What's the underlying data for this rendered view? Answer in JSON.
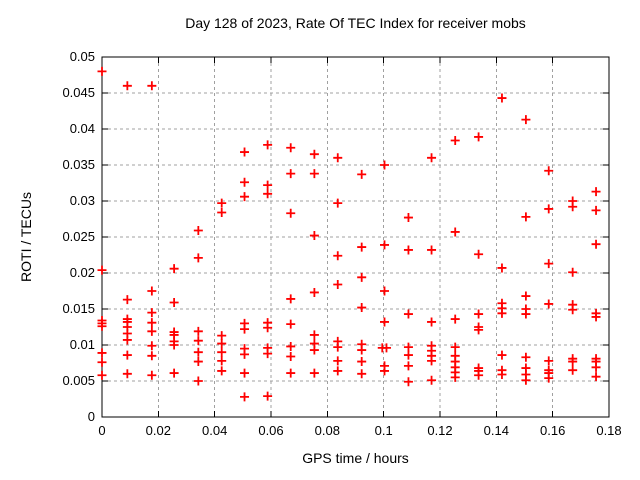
{
  "page": {
    "title": "Day 128 of 2023, Rate Of TEC Index for receiver mobs"
  },
  "chart_data": {
    "type": "scatter",
    "title": "Day 128 of 2023, Rate Of TEC Index for receiver mobs",
    "xlabel": "GPS time / hours",
    "ylabel": "ROTI / TECUs",
    "xlim": [
      0,
      0.18
    ],
    "ylim": [
      0,
      0.05
    ],
    "xticks": [
      0,
      0.02,
      0.04,
      0.06,
      0.08,
      0.1,
      0.12,
      0.14,
      0.16,
      0.18
    ],
    "yticks": [
      0,
      0.005,
      0.01,
      0.015,
      0.02,
      0.025,
      0.03,
      0.035,
      0.04,
      0.045,
      0.05
    ],
    "grid": true,
    "legend": false,
    "marker": {
      "shape": "plus",
      "color": "#ff0000",
      "size": 9,
      "stroke_width": 1.8
    },
    "colors": {
      "axis": "#000000",
      "grid": "#a0a0a0",
      "background": "#ffffff",
      "text": "#000000"
    },
    "points": [
      [
        0,
        0.048
      ],
      [
        0,
        0.0204
      ],
      [
        0,
        0.0134
      ],
      [
        0,
        0.013
      ],
      [
        0,
        0.0126
      ],
      [
        0,
        0.0089
      ],
      [
        0,
        0.0076
      ],
      [
        0,
        0.0058
      ],
      [
        0.009,
        0.046
      ],
      [
        0.009,
        0.0163
      ],
      [
        0.009,
        0.0136
      ],
      [
        0.009,
        0.0132
      ],
      [
        0.009,
        0.0125
      ],
      [
        0.009,
        0.0116
      ],
      [
        0.009,
        0.0107
      ],
      [
        0.009,
        0.0086
      ],
      [
        0.009,
        0.006
      ],
      [
        0.0177,
        0.046
      ],
      [
        0.0177,
        0.0175
      ],
      [
        0.0177,
        0.0145
      ],
      [
        0.0177,
        0.0131
      ],
      [
        0.0177,
        0.0119
      ],
      [
        0.0177,
        0.0099
      ],
      [
        0.0177,
        0.0085
      ],
      [
        0.0177,
        0.0058
      ],
      [
        0.0256,
        0.0206
      ],
      [
        0.0256,
        0.0159
      ],
      [
        0.0256,
        0.0118
      ],
      [
        0.0256,
        0.0114
      ],
      [
        0.0256,
        0.0105
      ],
      [
        0.0256,
        0.01
      ],
      [
        0.0256,
        0.0061
      ],
      [
        0.0342,
        0.0259
      ],
      [
        0.0342,
        0.0221
      ],
      [
        0.0342,
        0.0119
      ],
      [
        0.0342,
        0.0106
      ],
      [
        0.0342,
        0.009
      ],
      [
        0.0342,
        0.0077
      ],
      [
        0.0342,
        0.005
      ],
      [
        0.0425,
        0.0297
      ],
      [
        0.0425,
        0.0284
      ],
      [
        0.0425,
        0.0113
      ],
      [
        0.0425,
        0.0102
      ],
      [
        0.0425,
        0.009
      ],
      [
        0.0425,
        0.0078
      ],
      [
        0.0425,
        0.0064
      ],
      [
        0.0506,
        0.0368
      ],
      [
        0.0506,
        0.0326
      ],
      [
        0.0506,
        0.0306
      ],
      [
        0.0506,
        0.013
      ],
      [
        0.0506,
        0.0122
      ],
      [
        0.0506,
        0.0095
      ],
      [
        0.0506,
        0.0087
      ],
      [
        0.0506,
        0.0061
      ],
      [
        0.0506,
        0.0028
      ],
      [
        0.0588,
        0.0378
      ],
      [
        0.0588,
        0.0322
      ],
      [
        0.0588,
        0.031
      ],
      [
        0.0588,
        0.0131
      ],
      [
        0.0588,
        0.0124
      ],
      [
        0.0588,
        0.0096
      ],
      [
        0.0588,
        0.0088
      ],
      [
        0.0588,
        0.0029
      ],
      [
        0.067,
        0.0374
      ],
      [
        0.067,
        0.0338
      ],
      [
        0.067,
        0.0283
      ],
      [
        0.067,
        0.0164
      ],
      [
        0.067,
        0.0129
      ],
      [
        0.067,
        0.0098
      ],
      [
        0.067,
        0.0084
      ],
      [
        0.067,
        0.0061
      ],
      [
        0.0754,
        0.0365
      ],
      [
        0.0754,
        0.0338
      ],
      [
        0.0754,
        0.0252
      ],
      [
        0.0754,
        0.0173
      ],
      [
        0.0754,
        0.0114
      ],
      [
        0.0754,
        0.0102
      ],
      [
        0.0754,
        0.0093
      ],
      [
        0.0754,
        0.0061
      ],
      [
        0.0837,
        0.036
      ],
      [
        0.0837,
        0.0297
      ],
      [
        0.0837,
        0.0224
      ],
      [
        0.0837,
        0.0184
      ],
      [
        0.0837,
        0.0105
      ],
      [
        0.0837,
        0.0097
      ],
      [
        0.0837,
        0.0078
      ],
      [
        0.0837,
        0.0064
      ],
      [
        0.0922,
        0.0337
      ],
      [
        0.0922,
        0.0236
      ],
      [
        0.0922,
        0.0194
      ],
      [
        0.0922,
        0.0152
      ],
      [
        0.0922,
        0.0101
      ],
      [
        0.0922,
        0.0093
      ],
      [
        0.0922,
        0.0077
      ],
      [
        0.0922,
        0.006
      ],
      [
        0.1003,
        0.035
      ],
      [
        0.1003,
        0.0239
      ],
      [
        0.1003,
        0.0175
      ],
      [
        0.1003,
        0.0132
      ],
      [
        0.0995,
        0.0096
      ],
      [
        0.101,
        0.0096
      ],
      [
        0.1003,
        0.0071
      ],
      [
        0.1003,
        0.0064
      ],
      [
        0.1088,
        0.0277
      ],
      [
        0.1088,
        0.0232
      ],
      [
        0.1088,
        0.0143
      ],
      [
        0.1088,
        0.0097
      ],
      [
        0.1088,
        0.0086
      ],
      [
        0.1088,
        0.0071
      ],
      [
        0.1088,
        0.0049
      ],
      [
        0.117,
        0.036
      ],
      [
        0.117,
        0.0232
      ],
      [
        0.117,
        0.0132
      ],
      [
        0.117,
        0.0099
      ],
      [
        0.117,
        0.0092
      ],
      [
        0.117,
        0.0085
      ],
      [
        0.117,
        0.0078
      ],
      [
        0.117,
        0.0051
      ],
      [
        0.1254,
        0.0384
      ],
      [
        0.1254,
        0.0257
      ],
      [
        0.1254,
        0.0136
      ],
      [
        0.1254,
        0.0097
      ],
      [
        0.1254,
        0.0085
      ],
      [
        0.1254,
        0.0077
      ],
      [
        0.1254,
        0.0069
      ],
      [
        0.1254,
        0.0062
      ],
      [
        0.1254,
        0.0055
      ],
      [
        0.1337,
        0.0389
      ],
      [
        0.1337,
        0.0226
      ],
      [
        0.1337,
        0.0143
      ],
      [
        0.1337,
        0.0125
      ],
      [
        0.1337,
        0.0121
      ],
      [
        0.1337,
        0.0068
      ],
      [
        0.1337,
        0.0064
      ],
      [
        0.1337,
        0.0058
      ],
      [
        0.142,
        0.0443
      ],
      [
        0.142,
        0.0207
      ],
      [
        0.142,
        0.0158
      ],
      [
        0.142,
        0.0151
      ],
      [
        0.142,
        0.0144
      ],
      [
        0.142,
        0.0086
      ],
      [
        0.142,
        0.0065
      ],
      [
        0.142,
        0.0059
      ],
      [
        0.1505,
        0.0413
      ],
      [
        0.1505,
        0.0278
      ],
      [
        0.1505,
        0.0168
      ],
      [
        0.1505,
        0.015
      ],
      [
        0.1505,
        0.0143
      ],
      [
        0.1505,
        0.0083
      ],
      [
        0.1505,
        0.0068
      ],
      [
        0.1505,
        0.0059
      ],
      [
        0.1505,
        0.0051
      ],
      [
        0.1586,
        0.0342
      ],
      [
        0.1586,
        0.0289
      ],
      [
        0.1586,
        0.0213
      ],
      [
        0.1586,
        0.0157
      ],
      [
        0.1586,
        0.0078
      ],
      [
        0.1586,
        0.0065
      ],
      [
        0.1586,
        0.0061
      ],
      [
        0.1586,
        0.0054
      ],
      [
        0.1671,
        0.03
      ],
      [
        0.1671,
        0.0292
      ],
      [
        0.1671,
        0.0201
      ],
      [
        0.1671,
        0.0156
      ],
      [
        0.1671,
        0.0149
      ],
      [
        0.1671,
        0.0081
      ],
      [
        0.1671,
        0.0077
      ],
      [
        0.1671,
        0.0065
      ],
      [
        0.1754,
        0.0313
      ],
      [
        0.1754,
        0.0287
      ],
      [
        0.1754,
        0.024
      ],
      [
        0.1754,
        0.0144
      ],
      [
        0.1754,
        0.0139
      ],
      [
        0.1754,
        0.0081
      ],
      [
        0.1754,
        0.0077
      ],
      [
        0.1754,
        0.0069
      ],
      [
        0.1754,
        0.0056
      ]
    ]
  }
}
